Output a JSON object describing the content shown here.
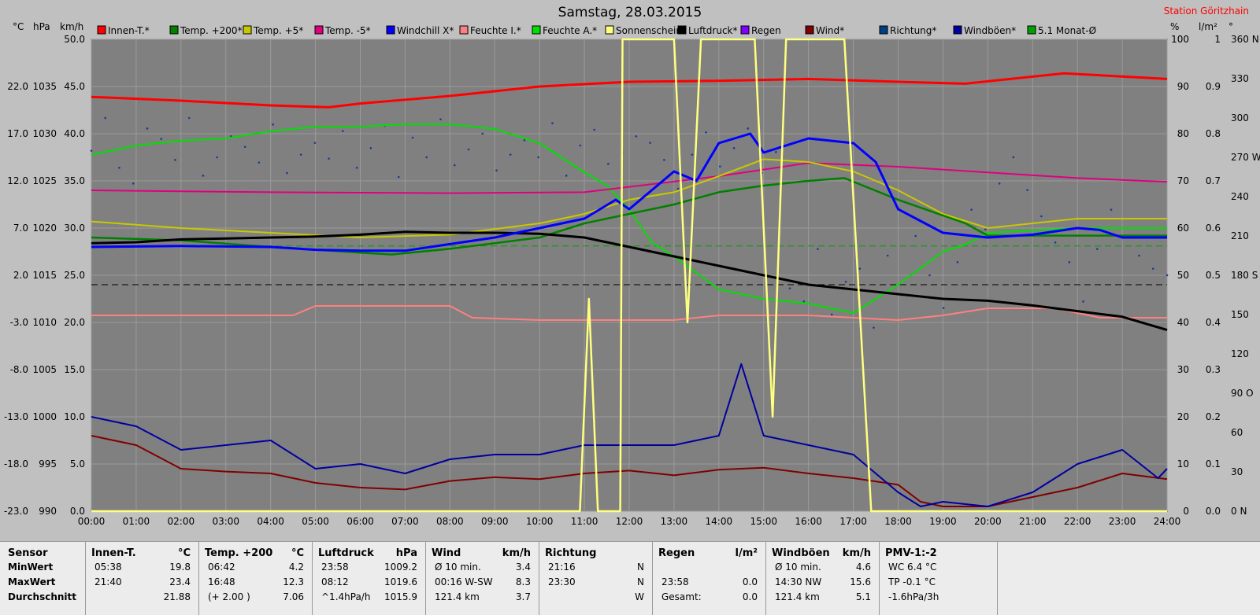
{
  "header": {
    "title": "Samstag, 28.03.2015",
    "station": "Station Göritzhain"
  },
  "axis_units": {
    "temp": "°C",
    "pressure": "hPa",
    "wind": "km/h",
    "percent": "%",
    "rain": "l/m²",
    "deg": "°"
  },
  "legend": [
    {
      "label": "Innen-T.*",
      "color": "#ff0000"
    },
    {
      "label": "Temp. +200*",
      "color": "#008000"
    },
    {
      "label": "Temp. +5*",
      "color": "#c8c800"
    },
    {
      "label": "Temp. -5*",
      "color": "#e0007f"
    },
    {
      "label": "Windchill X*",
      "color": "#0000ff"
    },
    {
      "label": "Feuchte I.*",
      "color": "#ff8080"
    },
    {
      "label": "Feuchte A.*",
      "color": "#00e000"
    },
    {
      "label": "Sonnenschein",
      "color": "#ffff80"
    },
    {
      "label": "Luftdruck*",
      "color": "#000000"
    },
    {
      "label": "Regen",
      "color": "#8000ff"
    },
    {
      "label": "Wind*",
      "color": "#800000"
    },
    {
      "label": "Richtung*",
      "color": "#004080"
    },
    {
      "label": "Windböen*",
      "color": "#0000a0"
    },
    {
      "label": "5.1 Monat-Ø",
      "color": "#00a000"
    }
  ],
  "chart_data": {
    "type": "line",
    "title": "Samstag, 28.03.2015",
    "x_ticks": [
      "00:00",
      "01:00",
      "02:00",
      "03:00",
      "04:00",
      "05:00",
      "06:00",
      "07:00",
      "08:00",
      "09:00",
      "10:00",
      "11:00",
      "12:00",
      "13:00",
      "14:00",
      "15:00",
      "16:00",
      "17:00",
      "18:00",
      "19:00",
      "20:00",
      "21:00",
      "22:00",
      "23:00",
      "24:00"
    ],
    "x_range_hours": [
      0,
      24
    ],
    "axes": {
      "temp_c": {
        "ticks": [
          "22.0",
          "17.0",
          "12.0",
          "7.0",
          "2.0",
          "-3.0",
          "-8.0",
          "-13.0",
          "-18.0",
          "-23.0"
        ],
        "range": [
          -23,
          27
        ]
      },
      "pressure_hpa": {
        "ticks": [
          "1035",
          "1030",
          "1025",
          "1020",
          "1015",
          "1010",
          "1005",
          "1000",
          "995",
          "990"
        ],
        "range": [
          990,
          1040
        ]
      },
      "wind_kmh": {
        "ticks": [
          "50.0",
          "45.0",
          "40.0",
          "35.0",
          "30.0",
          "25.0",
          "20.0",
          "15.0",
          "10.0",
          "5.0",
          "0.0"
        ],
        "range": [
          0,
          50
        ]
      },
      "percent": {
        "ticks": [
          "100",
          "90",
          "80",
          "70",
          "60",
          "50",
          "40",
          "30",
          "20",
          "10",
          "0"
        ],
        "range": [
          0,
          100
        ]
      },
      "rain_lm2": {
        "ticks": [
          "1",
          "0.9",
          "0.8",
          "0.7",
          "0.6",
          "0.5",
          "0.4",
          "0.3",
          "0.2",
          "0.1",
          "0.0"
        ],
        "range": [
          0,
          1
        ]
      },
      "direction": {
        "ticks": [
          "360 N",
          "330",
          "300",
          "270 W",
          "240",
          "210",
          "180 S",
          "150",
          "120",
          "90 O",
          "60",
          "30",
          "0 N"
        ],
        "range": [
          0,
          360
        ]
      }
    },
    "series": [
      {
        "name": "Innen-T.*",
        "axis": "temp_c",
        "x": [
          0,
          2,
          4,
          5.3,
          6,
          8,
          10,
          12,
          14,
          16,
          18,
          19.5,
          21.7,
          24
        ],
        "y": [
          20.9,
          20.5,
          20.0,
          19.8,
          20.2,
          21.0,
          22.0,
          22.5,
          22.6,
          22.8,
          22.5,
          22.3,
          23.4,
          22.8
        ]
      },
      {
        "name": "Temp. +200*",
        "axis": "temp_c",
        "x": [
          0,
          2,
          4,
          6,
          6.7,
          8,
          10,
          11,
          12,
          13,
          14,
          15,
          16,
          16.8,
          18,
          19.5,
          20,
          24
        ],
        "y": [
          6.0,
          5.7,
          5.0,
          4.4,
          4.2,
          4.8,
          6.0,
          7.5,
          8.5,
          9.5,
          10.8,
          11.5,
          12.0,
          12.3,
          10.0,
          7.5,
          6.2,
          6.2
        ]
      },
      {
        "name": "Temp. +5*",
        "axis": "temp_c",
        "x": [
          0,
          2,
          4,
          6,
          8,
          10,
          11,
          12,
          13,
          14,
          15,
          16,
          17,
          18,
          19,
          20,
          22,
          24
        ],
        "y": [
          7.7,
          7.0,
          6.5,
          6.0,
          6.3,
          7.5,
          8.5,
          10.0,
          10.8,
          12.5,
          14.3,
          14.0,
          13.0,
          11.0,
          8.5,
          7.0,
          8.0,
          8.0
        ]
      },
      {
        "name": "Temp. -5*",
        "axis": "temp_c",
        "x": [
          0,
          4,
          8,
          11,
          14,
          16,
          18,
          20,
          22,
          24
        ],
        "y": [
          11.0,
          10.8,
          10.7,
          10.8,
          12.5,
          13.9,
          13.5,
          12.9,
          12.3,
          11.9
        ]
      },
      {
        "name": "Windchill X*",
        "axis": "temp_c",
        "x": [
          0,
          2,
          4,
          5,
          6,
          7,
          8,
          9,
          10,
          11,
          11.7,
          12,
          13,
          13.5,
          14,
          14.7,
          15,
          16,
          17,
          17.5,
          18,
          19,
          20,
          21,
          22,
          22.5,
          23,
          24
        ],
        "y": [
          5.0,
          5.1,
          5.0,
          4.7,
          4.6,
          4.6,
          5.3,
          6.0,
          7.0,
          8.0,
          10.0,
          9.0,
          13.0,
          12.0,
          16.0,
          17.0,
          15.0,
          16.5,
          16.0,
          14.0,
          9.0,
          6.5,
          6.0,
          6.3,
          7.0,
          6.8,
          6.0,
          6.0
        ]
      },
      {
        "name": "Feuchte I.*",
        "axis": "percent",
        "x": [
          0,
          4.5,
          5,
          8,
          8.5,
          10,
          11,
          12,
          13,
          14,
          16,
          18,
          19,
          20,
          21.5,
          22.5,
          24
        ],
        "y": [
          41.5,
          41.5,
          43.5,
          43.5,
          41,
          40.5,
          40.5,
          40.5,
          40.5,
          41.5,
          41.5,
          40.5,
          41.5,
          43,
          43,
          41,
          41
        ]
      },
      {
        "name": "Feuchte A.*",
        "axis": "percent",
        "x": [
          0,
          1,
          2,
          3,
          4,
          5,
          6,
          7,
          8,
          9,
          10,
          10.8,
          11.5,
          12,
          12.5,
          13,
          14,
          15,
          16,
          17,
          18,
          19,
          19.5,
          20,
          22,
          24
        ],
        "y": [
          75.5,
          77.5,
          78.5,
          79,
          80.5,
          81.5,
          81.5,
          82,
          82,
          81,
          78,
          73,
          69,
          64,
          57,
          54,
          47,
          45,
          44,
          42,
          48,
          55,
          56.5,
          59,
          60,
          60
        ]
      },
      {
        "name": "Luftdruck*",
        "axis": "pressure_hpa",
        "x": [
          0,
          1,
          2,
          3,
          4,
          5,
          6,
          7,
          8,
          9,
          10,
          11,
          12,
          13,
          14,
          15,
          16,
          17,
          18,
          19,
          20,
          21,
          22,
          23,
          24
        ],
        "y": [
          1018.4,
          1018.5,
          1018.8,
          1018.9,
          1019.0,
          1019.1,
          1019.3,
          1019.6,
          1019.5,
          1019.5,
          1019.4,
          1019.0,
          1018.0,
          1017.0,
          1016.0,
          1015.0,
          1014.0,
          1013.5,
          1013.0,
          1012.5,
          1012.3,
          1011.8,
          1011.2,
          1010.6,
          1009.2
        ]
      },
      {
        "name": "Sonnenschein",
        "axis": "percent",
        "x": [
          0,
          10.9,
          11.1,
          11.3,
          11.8,
          11.85,
          13.0,
          13.3,
          13.6,
          14.0,
          14.8,
          15.2,
          15.5,
          16.5,
          16.8,
          17.4,
          17.5,
          24
        ],
        "y": [
          0,
          0,
          45,
          0,
          0,
          100,
          100,
          40,
          100,
          100,
          100,
          20,
          100,
          100,
          100,
          0,
          0,
          0
        ]
      },
      {
        "name": "Wind*",
        "axis": "wind_kmh",
        "x": [
          0,
          1,
          2,
          3,
          4,
          5,
          6,
          7,
          8,
          9,
          10,
          11,
          12,
          13,
          14,
          15,
          16,
          17,
          18,
          18.5,
          19,
          20,
          21,
          22,
          23,
          24
        ],
        "y": [
          8.0,
          7.0,
          4.5,
          4.2,
          4.0,
          3.0,
          2.5,
          2.3,
          3.2,
          3.6,
          3.4,
          4.0,
          4.3,
          3.8,
          4.4,
          4.6,
          4.0,
          3.5,
          2.8,
          1.0,
          0.5,
          0.5,
          1.5,
          2.5,
          4.0,
          3.4
        ]
      },
      {
        "name": "Windböen*",
        "axis": "wind_kmh",
        "x": [
          0,
          1,
          2,
          3,
          4,
          5,
          6,
          7,
          8,
          9,
          10,
          11,
          12,
          13,
          14,
          14.5,
          15,
          16,
          17,
          18,
          18.5,
          19,
          20,
          21,
          22,
          23,
          23.8,
          24
        ],
        "y": [
          10.0,
          9.0,
          6.5,
          7.0,
          7.5,
          4.5,
          5.0,
          4.0,
          5.5,
          6.0,
          6.0,
          7.0,
          7.0,
          7.0,
          8.0,
          15.6,
          8.0,
          7.0,
          6.0,
          2.0,
          0.5,
          1.0,
          0.5,
          2.0,
          5.0,
          6.5,
          3.5,
          4.5
        ]
      },
      {
        "name": "5.1 Monat-Ø",
        "axis": "temp_c",
        "x": [
          0,
          24
        ],
        "y": [
          5.1,
          5.1
        ]
      }
    ],
    "richtung_points_deg": [
      275,
      300,
      262,
      250,
      292,
      284,
      268,
      300,
      256,
      270,
      286,
      278,
      266,
      295,
      258,
      272,
      281,
      269,
      290,
      262,
      277,
      294,
      255,
      285,
      270,
      299,
      264,
      276,
      288,
      260,
      272,
      283,
      270,
      296,
      256,
      279,
      291,
      265,
      274,
      286,
      281,
      268,
      246,
      272,
      289,
      263,
      277,
      292,
      258,
      274,
      170,
      160,
      200,
      150,
      175,
      185,
      140,
      195,
      165,
      210,
      180,
      155,
      190,
      230,
      215,
      250,
      270,
      245,
      225,
      205,
      190,
      160,
      200,
      230,
      210,
      195,
      185,
      180
    ],
    "reference_lines": [
      {
        "axis": "temp_c",
        "value": 5.1,
        "style": "dashed",
        "color": "#00a000"
      },
      {
        "axis": "percent",
        "value": 48,
        "style": "dashed",
        "color": "#000000"
      }
    ]
  },
  "summary": {
    "row_labels": [
      "Sensor",
      "MinWert",
      "MaxWert",
      "Durchschnitt"
    ],
    "columns": [
      {
        "header": "Innen-T.",
        "unit": "°C",
        "rows": [
          [
            "05:38",
            "19.8"
          ],
          [
            "21:40",
            "23.4"
          ],
          [
            "",
            "21.88"
          ]
        ]
      },
      {
        "header": "Temp. +200",
        "unit": "°C",
        "rows": [
          [
            "06:42",
            "4.2"
          ],
          [
            "16:48",
            "12.3"
          ],
          [
            "(+ 2.00 )",
            "7.06"
          ]
        ]
      },
      {
        "header": "Luftdruck",
        "unit": "hPa",
        "rows": [
          [
            "23:58",
            "1009.2"
          ],
          [
            "08:12",
            "1019.6"
          ],
          [
            "^1.4hPa/h",
            "1015.9"
          ]
        ]
      },
      {
        "header": "Wind",
        "unit": "km/h",
        "rows": [
          [
            "Ø 10 min.",
            "3.4"
          ],
          [
            "00:16   W-SW",
            "8.3"
          ],
          [
            "121.4 km",
            "3.7"
          ]
        ]
      },
      {
        "header": "Richtung",
        "unit": "",
        "rows": [
          [
            "21:16",
            "N"
          ],
          [
            "23:30",
            "N"
          ],
          [
            "",
            "W"
          ]
        ]
      },
      {
        "header": "Regen",
        "unit": "l/m²",
        "rows": [
          [
            "",
            ""
          ],
          [
            "23:58",
            "0.0"
          ],
          [
            "Gesamt:",
            "0.0"
          ]
        ]
      },
      {
        "header": "Windböen",
        "unit": "km/h",
        "rows": [
          [
            "Ø 10 min.",
            "4.6"
          ],
          [
            "14:30   NW",
            "15.6"
          ],
          [
            "121.4 km",
            "5.1"
          ]
        ]
      },
      {
        "header": "PMV-1:-2",
        "unit": "",
        "rows": [
          [
            "WC 6.4 °C",
            ""
          ],
          [
            "TP -0.1 °C",
            ""
          ],
          [
            "-1.6hPa/3h",
            ""
          ]
        ]
      }
    ]
  }
}
